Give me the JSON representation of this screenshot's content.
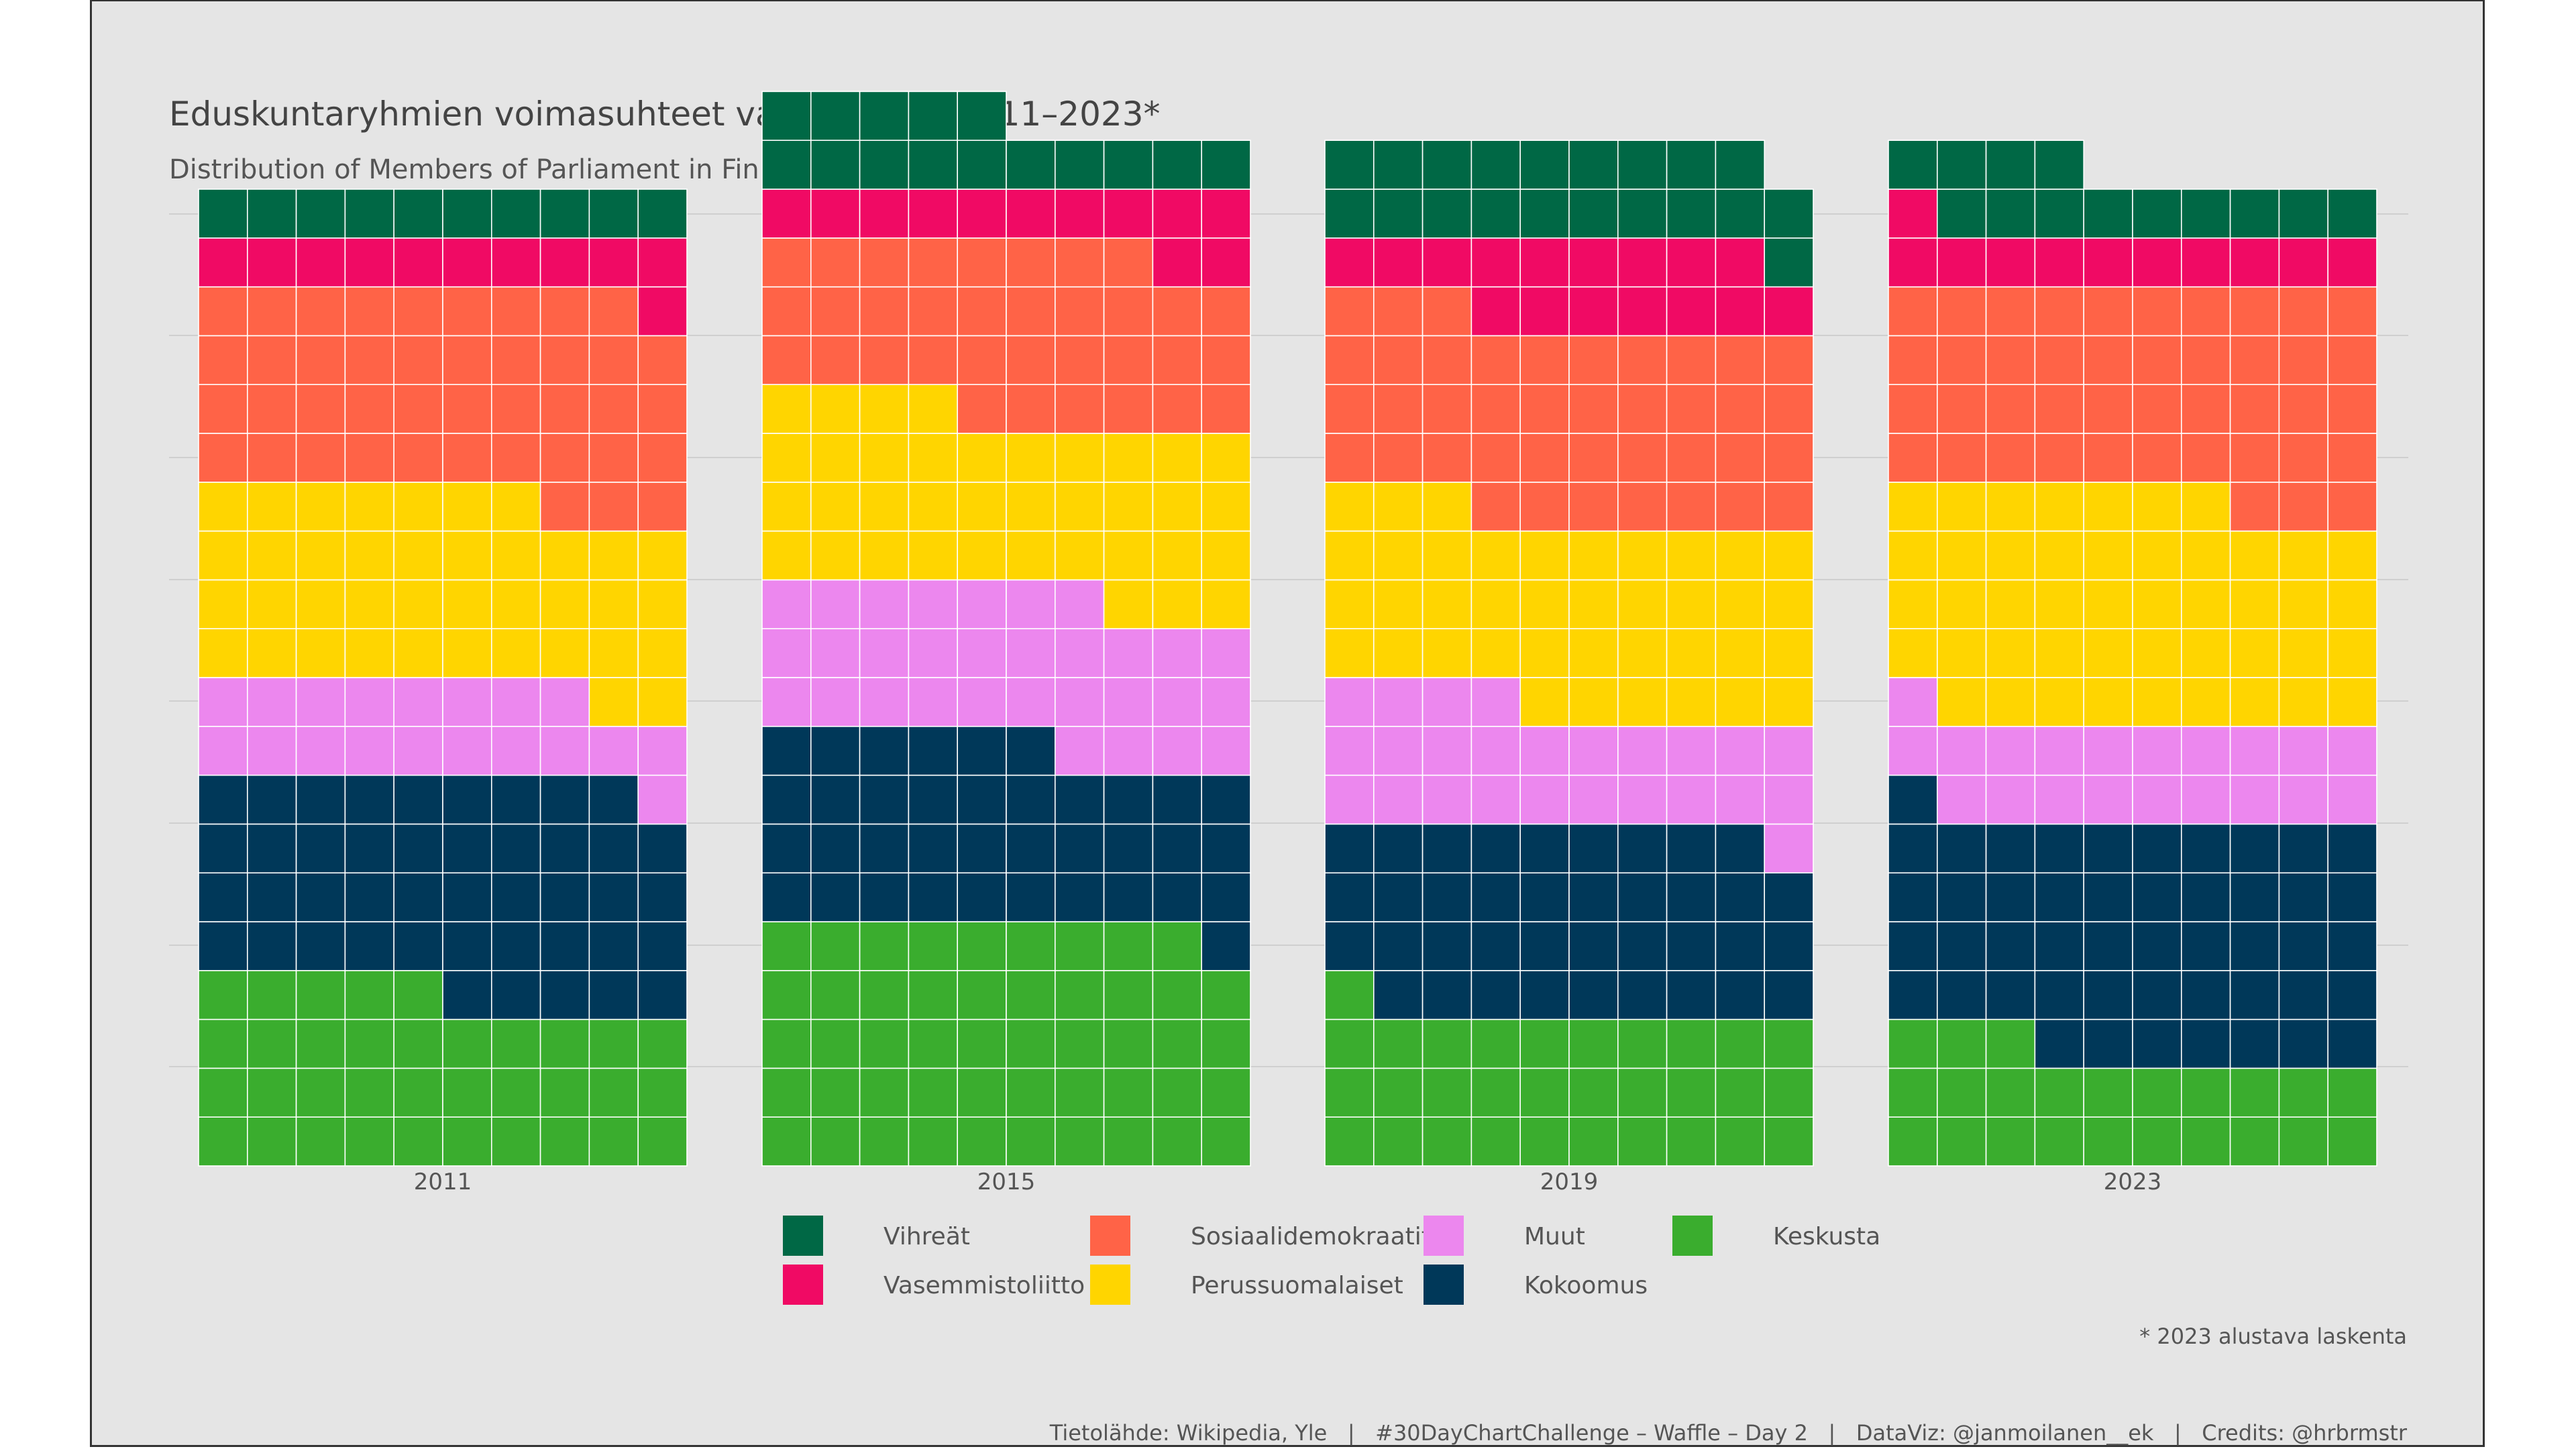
{
  "chart_data": {
    "type": "waffle",
    "title": "Eduskuntaryhmien voimasuhteet vaalivuosina 2011–2023*",
    "subtitle": "Distribution of Members of Parliament in Finland by election year",
    "grid_columns": 10,
    "grid_rows": 20,
    "parties": [
      {
        "key": "Keskusta",
        "label": "Keskusta",
        "color": "#3aad2e"
      },
      {
        "key": "Kokoomus",
        "label": "Kokoomus",
        "color": "#003859"
      },
      {
        "key": "Muut",
        "label": "Muut",
        "color": "#ec87ee"
      },
      {
        "key": "Perussuomalaiset",
        "label": "Perussuomalaiset",
        "color": "#ffd500"
      },
      {
        "key": "Sosiaalidemokraatit",
        "label": "Sosiaalidemokraatit",
        "color": "#ff6347"
      },
      {
        "key": "Vasemmistoliitto",
        "label": "Vasemmistoliitto",
        "color": "#f00a64"
      },
      {
        "key": "Vihreät",
        "label": "Vihreät",
        "color": "#006845"
      }
    ],
    "years": [
      {
        "year": "2011",
        "seats": {
          "Keskusta": 35,
          "Kokoomus": 44,
          "Muut": 19,
          "Perussuomalaiset": 39,
          "Sosiaalidemokraatit": 42,
          "Vasemmistoliitto": 11,
          "Vihreät": 10
        }
      },
      {
        "year": "2015",
        "seats": {
          "Keskusta": 49,
          "Kokoomus": 37,
          "Muut": 31,
          "Perussuomalaiset": 37,
          "Sosiaalidemokraatit": 34,
          "Vasemmistoliitto": 12,
          "Vihreät": 15
        }
      },
      {
        "year": "2019",
        "seats": {
          "Keskusta": 31,
          "Kokoomus": 38,
          "Muut": 25,
          "Perussuomalaiset": 39,
          "Sosiaalidemokraatit": 40,
          "Vasemmistoliitto": 16,
          "Vihreät": 20
        }
      },
      {
        "year": "2023",
        "seats": {
          "Keskusta": 23,
          "Kokoomus": 48,
          "Muut": 20,
          "Perussuomalaiset": 46,
          "Sosiaalidemokraatit": 43,
          "Vasemmistoliitto": 11,
          "Vihreät": 13
        }
      }
    ],
    "legend_position": "bottom",
    "legend_order": [
      "Vihreät",
      "Vasemmistoliitto",
      "Sosiaalidemokraatit",
      "Perussuomalaiset",
      "Muut",
      "Kokoomus",
      "Keskusta"
    ],
    "footnote": "* 2023 alustava laskenta",
    "caption": "Tietolähde: Wikipedia, Yle   |   #30DayChartChallenge – Waffle – Day 2   |   DataViz: @janmoilanen__ek   |   Credits: @hrbrmstr"
  }
}
